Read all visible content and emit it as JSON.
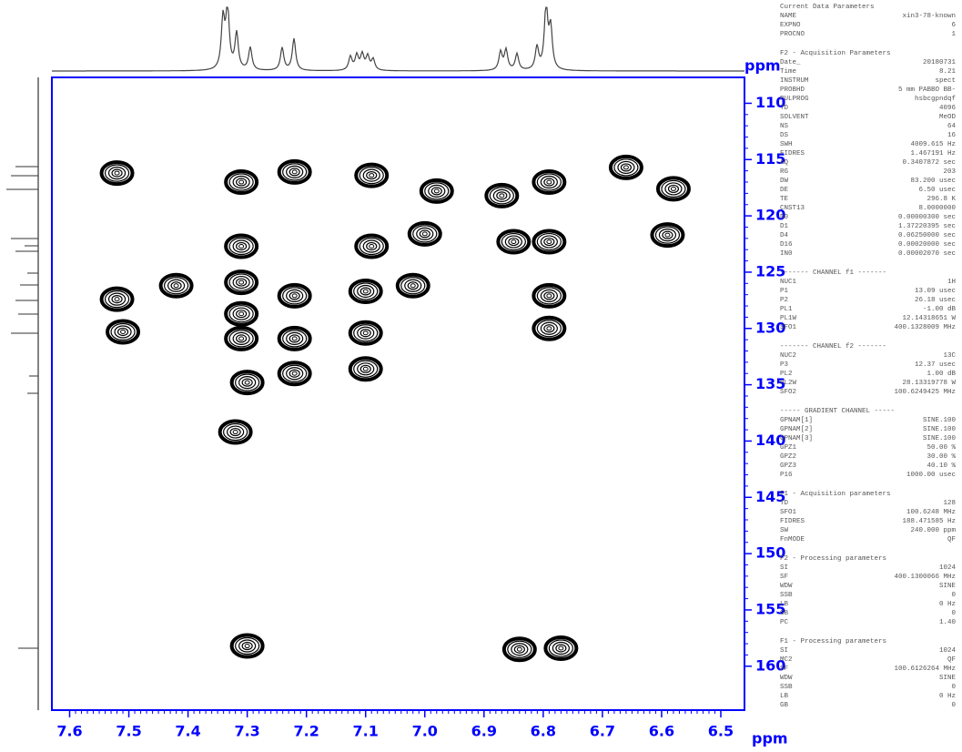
{
  "chart_data": {
    "type": "nmr2d",
    "x_label": "ppm",
    "y_label": "ppm",
    "xlim": [
      7.63,
      6.46
    ],
    "ylim": [
      107.7,
      163.9
    ],
    "xticks": [
      7.6,
      7.5,
      7.4,
      7.3,
      7.2,
      7.1,
      {
        "value": 7,
        "label": "7.0"
      },
      6.9,
      6.8,
      6.7,
      6.6,
      6.5
    ],
    "yticks": [
      110,
      115,
      120,
      125,
      130,
      135,
      140,
      145,
      150,
      155,
      160
    ],
    "axis_color": "#0000ff",
    "color": "#000000",
    "x": [
      7.52,
      7.31,
      7.22,
      7.09,
      6.98,
      7.0,
      7.09,
      7.02,
      7.42,
      7.52,
      7.51,
      7.31,
      7.31,
      7.31,
      7.31,
      7.22,
      7.22,
      7.1,
      7.1,
      7.1,
      7.3,
      7.22,
      6.87,
      6.79,
      6.85,
      6.79,
      6.79,
      6.79,
      6.66,
      6.58,
      6.59,
      7.3,
      6.84,
      6.77,
      7.32
    ],
    "values": [
      116.2,
      117.0,
      116.1,
      116.4,
      117.8,
      121.6,
      122.7,
      126.2,
      126.2,
      127.4,
      130.3,
      122.7,
      125.9,
      128.7,
      130.9,
      127.1,
      130.9,
      126.7,
      130.4,
      133.6,
      134.8,
      134.0,
      118.2,
      117.0,
      122.3,
      122.3,
      127.1,
      130.0,
      115.7,
      117.6,
      121.7,
      158.2,
      158.5,
      158.4,
      139.2
    ]
  },
  "parameters": [
    {
      "title": "Current Data Parameters",
      "rows": [
        [
          "NAME",
          "xin3-78-known"
        ],
        [
          "EXPNO",
          "6"
        ],
        [
          "PROCNO",
          "1"
        ]
      ]
    },
    {
      "title": "F2 - Acquisition Parameters",
      "rows": [
        [
          "Date_",
          "20180731"
        ],
        [
          "Time",
          "8.21"
        ],
        [
          "INSTRUM",
          "spect"
        ],
        [
          "PROBHD",
          "5 mm PABBO BB-"
        ],
        [
          "PULPROG",
          "hsbcgpndqf"
        ],
        [
          "TD",
          "4096"
        ],
        [
          "SOLVENT",
          "MeOD"
        ],
        [
          "NS",
          "64"
        ],
        [
          "DS",
          "16"
        ],
        [
          "SWH",
          "4009.615 Hz"
        ],
        [
          "FIDRES",
          "1.467191 Hz"
        ],
        [
          "AQ",
          "0.3407872 sec"
        ],
        [
          "RG",
          "203"
        ],
        [
          "DW",
          "83.200 usec"
        ],
        [
          "DE",
          "6.50 usec"
        ],
        [
          "TE",
          "296.8 K"
        ],
        [
          "CNST13",
          "8.0000000"
        ],
        [
          "D0",
          "0.00000300 sec"
        ],
        [
          "D1",
          "1.37220395 sec"
        ],
        [
          "D4",
          "0.06250000 sec"
        ],
        [
          "D16",
          "0.00020000 sec"
        ],
        [
          "IN0",
          "0.00002070 sec"
        ]
      ]
    },
    {
      "title": "------- CHANNEL f1 -------",
      "rows": [
        [
          "NUC1",
          "1H"
        ],
        [
          "P1",
          "13.09 usec"
        ],
        [
          "P2",
          "26.18 usec"
        ],
        [
          "PL1",
          "-1.00 dB"
        ],
        [
          "PL1W",
          "12.14318651 W"
        ],
        [
          "SFO1",
          "400.1328009 MHz"
        ]
      ]
    },
    {
      "title": "------- CHANNEL f2 -------",
      "rows": [
        [
          "NUC2",
          "13C"
        ],
        [
          "P3",
          "12.37 usec"
        ],
        [
          "PL2",
          "1.00 dB"
        ],
        [
          "PL2W",
          "28.13319778 W"
        ],
        [
          "SFO2",
          "100.6249425 MHz"
        ]
      ]
    },
    {
      "title": "----- GRADIENT CHANNEL -----",
      "rows": [
        [
          "GPNAM[1]",
          "SINE.100"
        ],
        [
          "GPNAM[2]",
          "SINE.100"
        ],
        [
          "GPNAM[3]",
          "SINE.100"
        ],
        [
          "GPZ1",
          "50.00 %"
        ],
        [
          "GPZ2",
          "30.00 %"
        ],
        [
          "GPZ3",
          "40.10 %"
        ],
        [
          "P16",
          "1000.00 usec"
        ]
      ]
    },
    {
      "title": "F1 - Acquisition parameters",
      "rows": [
        [
          "TD",
          "128"
        ],
        [
          "SFO1",
          "100.6248 MHz"
        ],
        [
          "FIDRES",
          "188.471585 Hz"
        ],
        [
          "SW",
          "240.000 ppm"
        ],
        [
          "FnMODE",
          "QF"
        ]
      ]
    },
    {
      "title": "F2 - Processing parameters",
      "rows": [
        [
          "SI",
          "1024"
        ],
        [
          "SF",
          "400.1300066 MHz"
        ],
        [
          "WDW",
          "SINE"
        ],
        [
          "SSB",
          "0"
        ],
        [
          "LB",
          "0 Hz"
        ],
        [
          "GB",
          "0"
        ],
        [
          "PC",
          "1.40"
        ]
      ]
    },
    {
      "title": "F1 - Processing parameters",
      "rows": [
        [
          "SI",
          "1024"
        ],
        [
          "MC2",
          "QF"
        ],
        [
          "SF",
          "100.6126264 MHz"
        ],
        [
          "WDW",
          "SINE"
        ],
        [
          "SSB",
          "0"
        ],
        [
          "LB",
          "0 Hz"
        ],
        [
          "GB",
          "0"
        ]
      ]
    }
  ]
}
